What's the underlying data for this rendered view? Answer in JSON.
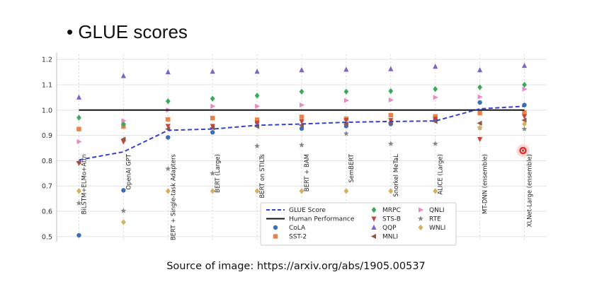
{
  "slide": {
    "title": "• GLUE scores",
    "caption": "Source of image: https://arxiv.org/abs/1905.00537"
  },
  "chart_data": {
    "type": "scatter",
    "categories": [
      "BiLSTM+ELMo+Attn",
      "OpenAI GPT",
      "BERT + Single-task Adapters",
      "BERT (Large)",
      "BERT on STILTs",
      "BERT + BAM",
      "SemBERT",
      "Snorkel MeTaL",
      "ALICE (Large)",
      "MT-DNN (ensemble)",
      "XLNet-Large (ensemble)"
    ],
    "yticks": [
      "0.5",
      "0.6",
      "0.7",
      "0.8",
      "0.9",
      "1.0",
      "1.1",
      "1.2"
    ],
    "ylim": [
      0.48,
      1.22
    ],
    "grid": true,
    "legend_position": "bottom-center",
    "human_performance": {
      "name": "Human Performance",
      "value": 1.0,
      "color": "#111111"
    },
    "glue_line": {
      "name": "GLUE Score",
      "color": "#3344cc",
      "values": [
        0.803,
        0.835,
        0.92,
        0.925,
        0.94,
        0.945,
        0.952,
        0.955,
        0.957,
        1.005,
        1.015
      ]
    },
    "series": [
      {
        "name": "CoLA",
        "color": "#3a70b8",
        "marker": "circle",
        "values": [
          0.505,
          0.683,
          0.892,
          0.912,
          0.952,
          0.927,
          0.937,
          0.945,
          0.962,
          1.03,
          1.02
        ]
      },
      {
        "name": "SST-2",
        "color": "#e8824a",
        "marker": "square",
        "values": [
          0.925,
          0.935,
          0.963,
          0.968,
          0.962,
          0.973,
          0.966,
          0.98,
          0.975,
          0.988,
          0.99
        ]
      },
      {
        "name": "MRPC",
        "color": "#3caa5a",
        "marker": "diamond",
        "values": [
          0.97,
          0.945,
          1.035,
          1.045,
          1.057,
          1.073,
          1.073,
          1.075,
          1.083,
          1.09,
          1.1
        ]
      },
      {
        "name": "STS-B",
        "color": "#c8453a",
        "marker": "triangle-down",
        "values": [
          0.79,
          0.875,
          0.937,
          0.937,
          0.95,
          0.955,
          0.96,
          0.96,
          0.965,
          0.885,
          0.975
        ]
      },
      {
        "name": "QQP",
        "color": "#7a65c8",
        "marker": "triangle-up",
        "values": [
          1.05,
          1.135,
          1.15,
          1.152,
          1.152,
          1.158,
          1.16,
          1.162,
          1.172,
          1.158,
          1.175
        ]
      },
      {
        "name": "MNLI",
        "color": "#8c5a4a",
        "marker": "triangle-left",
        "values": [
          0.795,
          0.885,
          0.925,
          0.93,
          0.935,
          0.94,
          0.945,
          0.95,
          0.955,
          0.948,
          0.96
        ]
      },
      {
        "name": "QNLI",
        "color": "#e88ac6",
        "marker": "triangle-right",
        "values": [
          0.875,
          0.958,
          1.0,
          1.015,
          1.015,
          1.02,
          1.038,
          1.04,
          1.05,
          1.052,
          1.083
        ]
      },
      {
        "name": "RTE",
        "color": "#888888",
        "marker": "star",
        "values": [
          0.632,
          0.602,
          0.768,
          0.75,
          0.858,
          0.862,
          0.907,
          0.867,
          0.867,
          0.93,
          0.925
        ]
      },
      {
        "name": "WNLI",
        "color": "#d4b060",
        "marker": "diamond",
        "values": [
          0.68,
          0.557,
          0.68,
          0.68,
          0.68,
          0.68,
          0.68,
          0.68,
          0.68,
          0.93,
          0.945
        ]
      }
    ],
    "legend": {
      "columns": [
        [
          {
            "label": "GLUE Score",
            "key": "glue"
          },
          {
            "label": "Human Performance",
            "key": "human"
          },
          {
            "label": "CoLA",
            "key": "CoLA"
          },
          {
            "label": "SST-2",
            "key": "SST-2"
          }
        ],
        [
          {
            "label": "MRPC",
            "key": "MRPC"
          },
          {
            "label": "STS-B",
            "key": "STS-B"
          },
          {
            "label": "QQP",
            "key": "QQP"
          },
          {
            "label": "MNLI",
            "key": "MNLI"
          }
        ],
        [
          {
            "label": "QNLI",
            "key": "QNLI"
          },
          {
            "label": "RTE",
            "key": "RTE"
          },
          {
            "label": "WNLI",
            "key": "WNLI"
          }
        ]
      ]
    },
    "cursor_indicator": {
      "color": "#e0302a",
      "x_category_index": 10.0,
      "y": 0.84
    }
  }
}
